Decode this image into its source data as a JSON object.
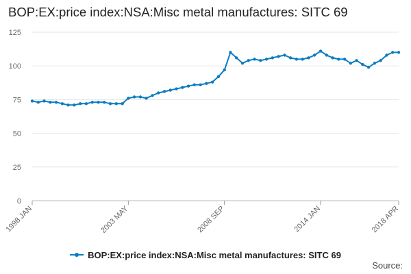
{
  "chart_data": {
    "type": "line",
    "title": "BOP:EX:price index:NSA:Misc metal manufactures: SITC 69",
    "xlabel": "",
    "ylabel": "",
    "ylim": [
      0,
      125
    ],
    "yticks": [
      0,
      25,
      50,
      75,
      100,
      125
    ],
    "xticks": [
      "1998 JAN",
      "2003 MAY",
      "2008 SEP",
      "2014 JAN",
      "2018 APR"
    ],
    "grid": true,
    "legend_position": "bottom",
    "series": [
      {
        "name": "BOP:EX:price index:NSA:Misc metal manufactures: SITC 69",
        "color": "#0b7cc1",
        "marker": "circle",
        "x": [
          "1998 JAN",
          "1998 MAY",
          "1998 SEP",
          "1999 JAN",
          "1999 MAY",
          "1999 SEP",
          "2000 JAN",
          "2000 MAY",
          "2000 SEP",
          "2001 JAN",
          "2001 MAY",
          "2001 SEP",
          "2002 JAN",
          "2002 MAY",
          "2002 SEP",
          "2003 JAN",
          "2003 MAY",
          "2003 SEP",
          "2004 JAN",
          "2004 MAY",
          "2004 SEP",
          "2005 JAN",
          "2005 MAY",
          "2005 SEP",
          "2006 JAN",
          "2006 MAY",
          "2006 SEP",
          "2007 JAN",
          "2007 MAY",
          "2007 SEP",
          "2008 JAN",
          "2008 MAY",
          "2008 SEP",
          "2009 JAN",
          "2009 MAY",
          "2009 SEP",
          "2010 JAN",
          "2010 MAY",
          "2010 SEP",
          "2011 JAN",
          "2011 MAY",
          "2011 SEP",
          "2012 JAN",
          "2012 MAY",
          "2012 SEP",
          "2013 JAN",
          "2013 MAY",
          "2013 SEP",
          "2014 JAN",
          "2014 MAY",
          "2014 SEP",
          "2015 JAN",
          "2015 MAY",
          "2015 SEP",
          "2016 JAN",
          "2016 MAY",
          "2016 SEP",
          "2017 JAN",
          "2017 MAY",
          "2017 SEP",
          "2018 JAN",
          "2018 APR"
        ],
        "values": [
          74,
          73,
          74,
          73,
          73,
          72,
          71,
          71,
          72,
          72,
          73,
          73,
          73,
          72,
          72,
          72,
          76,
          77,
          77,
          76,
          78,
          80,
          81,
          82,
          83,
          84,
          85,
          86,
          86,
          87,
          88,
          92,
          97,
          110,
          106,
          102,
          104,
          105,
          104,
          105,
          106,
          107,
          108,
          106,
          105,
          105,
          106,
          108,
          111,
          108,
          106,
          105,
          105,
          102,
          104,
          101,
          99,
          102,
          104,
          108,
          110,
          110
        ]
      }
    ]
  },
  "source_label": "Source:"
}
